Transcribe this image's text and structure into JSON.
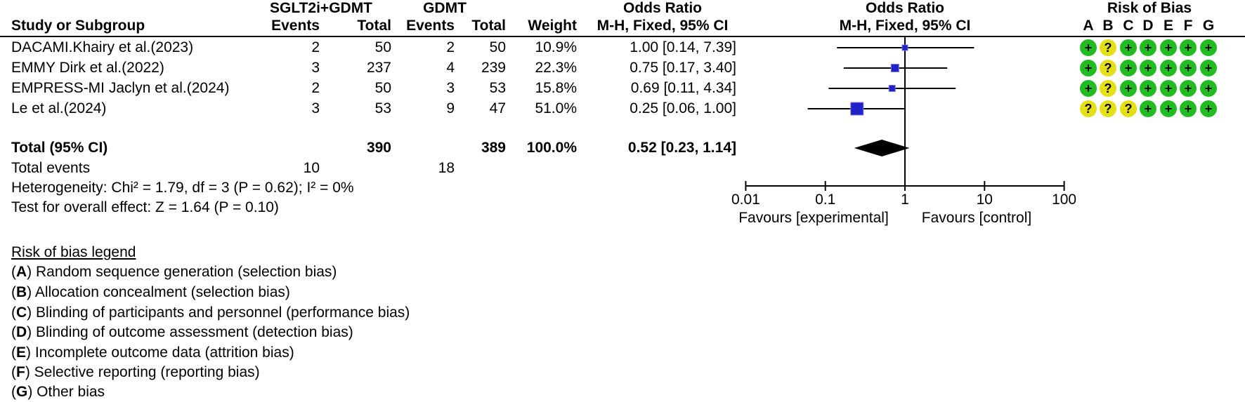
{
  "table": {
    "header": {
      "study_col": "Study or Subgroup",
      "group1": "SGLT2i+GDMT",
      "group2": "GDMT",
      "events1": "Events",
      "total1": "Total",
      "events2": "Events",
      "total2": "Total",
      "weight": "Weight",
      "or_text_title": "Odds Ratio",
      "or_text_sub": "M-H, Fixed, 95% CI",
      "or_plot_title": "Odds Ratio",
      "or_plot_sub": "M-H, Fixed, 95% CI"
    },
    "studies": [
      {
        "name": "DACAMI.Khairy et al.(2023)",
        "events1": "2",
        "total1": "50",
        "events2": "2",
        "total2": "50",
        "weight": "10.9%",
        "or_ci": "1.00 [0.14, 7.39]",
        "rob": [
          "+",
          "?",
          "+",
          "+",
          "+",
          "+",
          "+"
        ]
      },
      {
        "name": "EMMY Dirk et al.(2022)",
        "events1": "3",
        "total1": "237",
        "events2": "4",
        "total2": "239",
        "weight": "22.3%",
        "or_ci": "0.75 [0.17, 3.40]",
        "rob": [
          "+",
          "?",
          "+",
          "+",
          "+",
          "+",
          "+"
        ]
      },
      {
        "name": "EMPRESS-MI Jaclyn et al.(2024)",
        "events1": "2",
        "total1": "50",
        "events2": "3",
        "total2": "53",
        "weight": "15.8%",
        "or_ci": "0.69 [0.11, 4.34]",
        "rob": [
          "+",
          "?",
          "+",
          "+",
          "+",
          "+",
          "+"
        ]
      },
      {
        "name": "Le et al.(2024)",
        "events1": "3",
        "total1": "53",
        "events2": "9",
        "total2": "47",
        "weight": "51.0%",
        "or_ci": "0.25 [0.06, 1.00]",
        "rob": [
          "?",
          "?",
          "?",
          "+",
          "+",
          "+",
          "+"
        ]
      }
    ],
    "total_row": {
      "label": "Total (95% CI)",
      "total1": "390",
      "total2": "389",
      "weight": "100.0%",
      "or_ci": "0.52 [0.23, 1.14]"
    },
    "total_events": {
      "label": "Total events",
      "v1": "10",
      "v2": "18"
    },
    "heterogeneity": "Heterogeneity: Chi² = 1.79, df = 3 (P = 0.62); I² = 0%",
    "overall_effect": "Test for overall effect: Z = 1.64 (P = 0.10)"
  },
  "chart_data": {
    "type": "forest",
    "scale": "log10",
    "x_axis": {
      "ticks": [
        0.01,
        0.1,
        1,
        10,
        100
      ],
      "tick_labels": [
        "0.01",
        "0.1",
        "1",
        "10",
        "100"
      ],
      "null_value": 1
    },
    "studies": [
      {
        "name": "DACAMI.Khairy et al.(2023)",
        "or": 1.0,
        "ci_low": 0.14,
        "ci_high": 7.39,
        "weight_pct": 10.9
      },
      {
        "name": "EMMY Dirk et al.(2022)",
        "or": 0.75,
        "ci_low": 0.17,
        "ci_high": 3.4,
        "weight_pct": 22.3
      },
      {
        "name": "EMPRESS-MI Jaclyn et al.(2024)",
        "or": 0.69,
        "ci_low": 0.11,
        "ci_high": 4.34,
        "weight_pct": 15.8
      },
      {
        "name": "Le et al.(2024)",
        "or": 0.25,
        "ci_low": 0.06,
        "ci_high": 1.0,
        "weight_pct": 51.0
      }
    ],
    "total": {
      "or": 0.52,
      "ci_low": 0.23,
      "ci_high": 1.14
    },
    "favours_left": "Favours [experimental]",
    "favours_right": "Favours [control]"
  },
  "risk_of_bias": {
    "title": "Risk of Bias",
    "columns": [
      "A",
      "B",
      "C",
      "D",
      "E",
      "F",
      "G"
    ],
    "legend_title": "Risk of bias legend",
    "legend": [
      {
        "letter": "A",
        "text": "Random sequence generation (selection bias)"
      },
      {
        "letter": "B",
        "text": "Allocation concealment (selection bias)"
      },
      {
        "letter": "C",
        "text": "Blinding of participants and personnel (performance bias)"
      },
      {
        "letter": "D",
        "text": "Blinding of outcome assessment (detection bias)"
      },
      {
        "letter": "E",
        "text": "Incomplete outcome data (attrition bias)"
      },
      {
        "letter": "F",
        "text": "Selective reporting (reporting bias)"
      },
      {
        "letter": "G",
        "text": "Other bias"
      }
    ]
  },
  "colors": {
    "square_blue": "#2121C8",
    "square_edge": "#7A7AE0",
    "diamond_black": "#000000",
    "rob_low": "#22BC22",
    "rob_unclear": "#E5DF15",
    "line_black": "#000000"
  }
}
